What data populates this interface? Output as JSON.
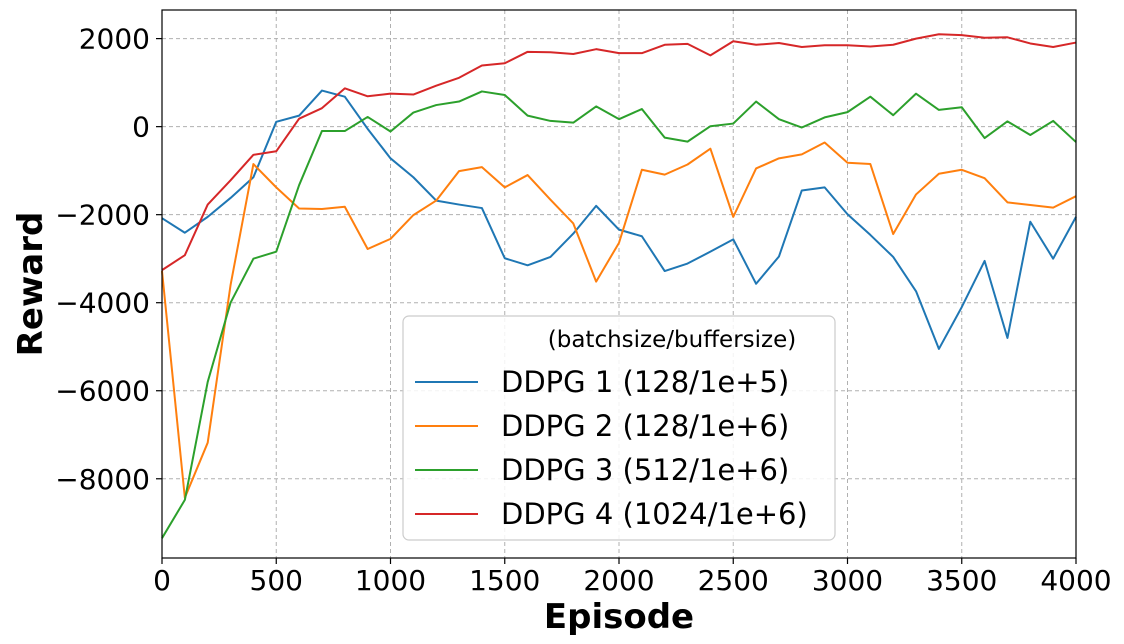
{
  "chart_data": {
    "type": "line",
    "title": "",
    "xlabel": "Episode",
    "ylabel": "Reward",
    "xlim": [
      0,
      4000
    ],
    "ylim": [
      -9800,
      2650
    ],
    "xticks": [
      0,
      500,
      1000,
      1500,
      2000,
      2500,
      3000,
      3500,
      4000
    ],
    "yticks": [
      -8000,
      -6000,
      -4000,
      -2000,
      0,
      2000
    ],
    "grid": true,
    "legend_title": "(batchsize/buffersize)",
    "legend_position": "bottom-center",
    "x": [
      0,
      100,
      200,
      300,
      400,
      500,
      600,
      700,
      800,
      900,
      1000,
      1100,
      1200,
      1300,
      1400,
      1500,
      1600,
      1700,
      1800,
      1900,
      2000,
      2100,
      2200,
      2300,
      2400,
      2500,
      2600,
      2700,
      2800,
      2900,
      3000,
      3100,
      3200,
      3300,
      3400,
      3500,
      3600,
      3700,
      3800,
      3900,
      4000
    ],
    "series": [
      {
        "name": "DDPG 1 (128/1e+5)",
        "color": "#1f77b4",
        "values": [
          -2080,
          -2410,
          -2050,
          -1620,
          -1150,
          110,
          250,
          820,
          680,
          -50,
          -720,
          -1150,
          -1680,
          -1770,
          -1850,
          -2990,
          -3150,
          -2960,
          -2430,
          -1800,
          -2340,
          -2490,
          -3280,
          -3110,
          -2840,
          -2560,
          -3570,
          -2950,
          -1450,
          -1380,
          -1990,
          -2460,
          -2960,
          -3740,
          -5050,
          -4100,
          -3050,
          -4800,
          -2160,
          -3000,
          -2050
        ]
      },
      {
        "name": "DDPG 2 (128/1e+6)",
        "color": "#ff7f0e",
        "values": [
          -3280,
          -8430,
          -7180,
          -3600,
          -850,
          -1380,
          -1860,
          -1870,
          -1820,
          -2780,
          -2550,
          -2010,
          -1680,
          -1010,
          -920,
          -1380,
          -1100,
          -1660,
          -2200,
          -3520,
          -2640,
          -980,
          -1090,
          -860,
          -500,
          -2050,
          -950,
          -720,
          -630,
          -360,
          -820,
          -850,
          -2440,
          -1540,
          -1070,
          -980,
          -1170,
          -1720,
          -1780,
          -1840,
          -1580
        ]
      },
      {
        "name": "DDPG 3 (512/1e+6)",
        "color": "#2ca02c",
        "values": [
          -9350,
          -8480,
          -5800,
          -4000,
          -3000,
          -2840,
          -1330,
          -100,
          -100,
          220,
          -110,
          320,
          490,
          570,
          800,
          720,
          250,
          130,
          90,
          460,
          170,
          400,
          -250,
          -340,
          10,
          70,
          570,
          170,
          -20,
          210,
          330,
          680,
          260,
          750,
          380,
          440,
          -260,
          120,
          -190,
          130,
          -350
        ]
      },
      {
        "name": "DDPG 4 (1024/1e+6)",
        "color": "#d62728",
        "values": [
          -3260,
          -2920,
          -1770,
          -1220,
          -640,
          -560,
          180,
          420,
          870,
          690,
          750,
          730,
          930,
          1110,
          1390,
          1440,
          1700,
          1690,
          1650,
          1760,
          1670,
          1670,
          1860,
          1880,
          1620,
          1940,
          1860,
          1900,
          1810,
          1850,
          1850,
          1820,
          1860,
          2000,
          2100,
          2080,
          2020,
          2030,
          1890,
          1810,
          1910
        ]
      }
    ]
  }
}
